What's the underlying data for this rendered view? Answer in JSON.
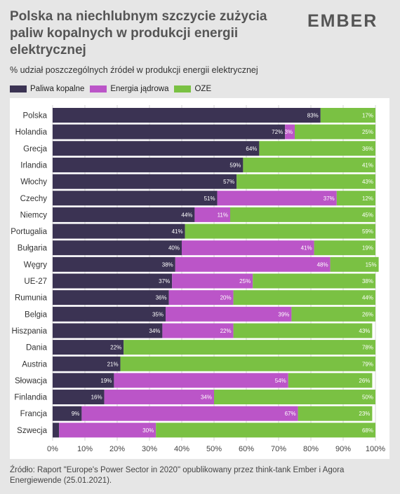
{
  "header": {
    "title": "Polska na niechlubnym szczycie zużycia paliw kopalnych w produkcji energii elektrycznej",
    "subtitle": "% udział poszczególnych źródeł w produkcji energii elektrycznej",
    "logo": "EMBER"
  },
  "colors": {
    "fossil": "#3b3353",
    "nuclear": "#bb55c8",
    "renewables": "#7ac143"
  },
  "legend": [
    {
      "label": "Paliwa kopalne",
      "key": "fossil"
    },
    {
      "label": "Energia jądrowa",
      "key": "nuclear"
    },
    {
      "label": "OZE",
      "key": "renewables"
    }
  ],
  "chart_data": {
    "type": "bar",
    "orientation": "horizontal",
    "stacked": true,
    "categories": [
      "Polska",
      "Holandia",
      "Grecja",
      "Irlandia",
      "Włochy",
      "Czechy",
      "Niemcy",
      "Portugalia",
      "Bułgaria",
      "Węgry",
      "UE-27",
      "Rumunia",
      "Belgia",
      "Hiszpania",
      "Dania",
      "Austria",
      "Słowacja",
      "Finlandia",
      "Francja",
      "Szwecja"
    ],
    "series": [
      {
        "name": "Paliwa kopalne",
        "key": "fossil",
        "values": [
          83,
          72,
          64,
          59,
          57,
          51,
          44,
          41,
          40,
          38,
          37,
          36,
          35,
          34,
          22,
          21,
          19,
          16,
          9,
          2
        ]
      },
      {
        "name": "Energia jądrowa",
        "key": "nuclear",
        "values": [
          0,
          3,
          0,
          0,
          0,
          37,
          11,
          0,
          41,
          48,
          25,
          20,
          39,
          22,
          0,
          0,
          54,
          34,
          67,
          30
        ]
      },
      {
        "name": "OZE",
        "key": "renewables",
        "values": [
          17,
          25,
          36,
          41,
          43,
          12,
          45,
          59,
          19,
          15,
          38,
          44,
          26,
          43,
          78,
          79,
          26,
          50,
          23,
          68
        ]
      }
    ],
    "labels": {
      "fossil": [
        "83%",
        "72%",
        "64%",
        "59%",
        "57%",
        "51%",
        "44%",
        "41%",
        "40%",
        "38%",
        "37%",
        "36%",
        "35%",
        "34%",
        "22%",
        "21%",
        "19%",
        "16%",
        "9%",
        ""
      ],
      "nuclear": [
        "",
        "3%",
        "",
        "",
        "",
        "37%",
        "11%",
        "",
        "41%",
        "48%",
        "25%",
        "20%",
        "39%",
        "22%",
        "",
        "",
        "54%",
        "34%",
        "67%",
        "30%"
      ],
      "renewables": [
        "17%",
        "25%",
        "36%",
        "41%",
        "43%",
        "12%",
        "45%",
        "59%",
        "19%",
        "15%",
        "38%",
        "44%",
        "26%",
        "43%",
        "78%",
        "79%",
        "26%",
        "50%",
        "23%",
        "68%"
      ]
    },
    "xlim": [
      0,
      100
    ],
    "xticks": [
      "0%",
      "10%",
      "20%",
      "30%",
      "40%",
      "50%",
      "60%",
      "70%",
      "80%",
      "90%",
      "100%"
    ],
    "grid": true,
    "legend_position": "top-left"
  },
  "footer": {
    "source": "Źródło: Raport \"Europe's Power Sector in 2020\" opublikowany przez think-tank Ember i Agora Energiewende (25.01.2021)."
  }
}
